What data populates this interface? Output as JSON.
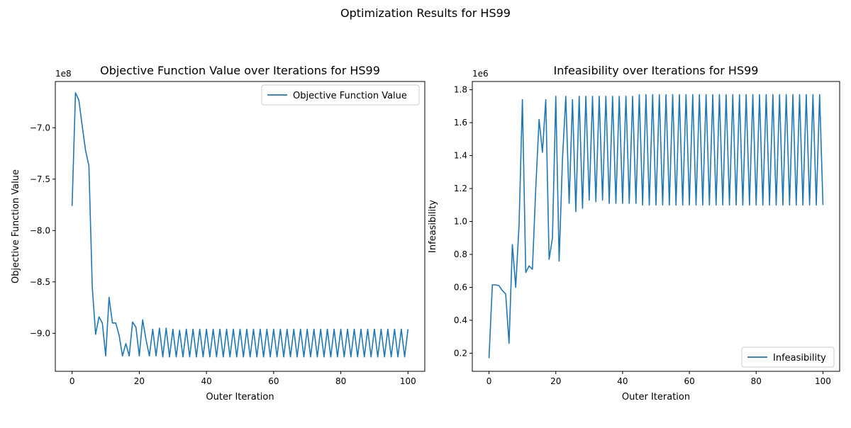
{
  "figure": {
    "suptitle": "Optimization Results for HS99"
  },
  "colors": {
    "series": "#1f77b4",
    "axes": "#000000",
    "legend_border": "#cccccc"
  },
  "chart_data": [
    {
      "type": "line",
      "title": "Objective Function Value over Iterations for HS99",
      "xlabel": "Outer Iteration",
      "ylabel": "Objective Function Value",
      "y_offset_text": "1e8",
      "y_scale_factor": 100000000,
      "xlim": [
        -5,
        105
      ],
      "ylim": [
        -9.37,
        -6.55
      ],
      "x_ticks": [
        0,
        20,
        40,
        60,
        80,
        100
      ],
      "x_tick_labels": [
        "0",
        "20",
        "40",
        "60",
        "80",
        "100"
      ],
      "y_ticks": [
        -9.0,
        -8.5,
        -8.0,
        -7.5,
        -7.0
      ],
      "y_tick_labels": [
        "−9.0",
        "−8.5",
        "−8.0",
        "−7.5",
        "−7.0"
      ],
      "grid": false,
      "legend_position": "upper right",
      "series": [
        {
          "name": "Objective Function Value",
          "x": [
            0,
            1,
            2,
            3,
            4,
            5,
            6,
            7,
            8,
            9,
            10,
            11,
            12,
            13,
            14,
            15,
            16,
            17,
            18,
            19,
            20,
            21,
            22,
            23,
            24,
            25,
            26,
            27,
            28,
            29,
            30,
            31,
            32,
            33,
            34,
            35,
            36,
            37,
            38,
            39,
            40,
            41,
            42,
            43,
            44,
            45,
            46,
            47,
            48,
            49,
            50,
            51,
            52,
            53,
            54,
            55,
            56,
            57,
            58,
            59,
            60,
            61,
            62,
            63,
            64,
            65,
            66,
            67,
            68,
            69,
            70,
            71,
            72,
            73,
            74,
            75,
            76,
            77,
            78,
            79,
            80,
            81,
            82,
            83,
            84,
            85,
            86,
            87,
            88,
            89,
            90,
            91,
            92,
            93,
            94,
            95,
            96,
            97,
            98,
            99,
            100
          ],
          "values": [
            -7.76,
            -6.66,
            -6.73,
            -6.98,
            -7.22,
            -7.37,
            -8.55,
            -9.01,
            -8.84,
            -8.9,
            -9.22,
            -8.65,
            -8.9,
            -8.9,
            -9.02,
            -9.22,
            -9.1,
            -9.22,
            -8.89,
            -8.94,
            -9.22,
            -8.87,
            -9.06,
            -9.22,
            -8.96,
            -9.22,
            -8.95,
            -9.23,
            -8.95,
            -9.23,
            -8.96,
            -9.23,
            -8.97,
            -9.23,
            -8.96,
            -9.23,
            -8.96,
            -9.23,
            -8.96,
            -9.23,
            -8.96,
            -9.23,
            -8.96,
            -9.23,
            -8.96,
            -9.23,
            -8.96,
            -9.23,
            -8.96,
            -9.23,
            -8.96,
            -9.23,
            -8.96,
            -9.23,
            -8.96,
            -9.23,
            -8.96,
            -9.23,
            -8.96,
            -9.23,
            -8.96,
            -9.23,
            -8.96,
            -9.23,
            -8.96,
            -9.23,
            -8.96,
            -9.23,
            -8.96,
            -9.23,
            -8.96,
            -9.23,
            -8.96,
            -9.23,
            -8.96,
            -9.23,
            -8.96,
            -9.23,
            -8.96,
            -9.23,
            -8.96,
            -9.23,
            -8.96,
            -9.23,
            -8.96,
            -9.23,
            -8.96,
            -9.23,
            -8.96,
            -9.23,
            -8.96,
            -9.23,
            -8.96,
            -9.23,
            -8.96,
            -9.23,
            -8.96,
            -9.23,
            -8.96,
            -9.23,
            -8.96
          ]
        }
      ]
    },
    {
      "type": "line",
      "title": "Infeasibility over Iterations for HS99",
      "xlabel": "Outer Iteration",
      "ylabel": "Infeasibility",
      "y_offset_text": "1e6",
      "y_scale_factor": 1000000,
      "xlim": [
        -5,
        105
      ],
      "ylim": [
        0.09,
        1.85
      ],
      "x_ticks": [
        0,
        20,
        40,
        60,
        80,
        100
      ],
      "x_tick_labels": [
        "0",
        "20",
        "40",
        "60",
        "80",
        "100"
      ],
      "y_ticks": [
        0.2,
        0.4,
        0.6,
        0.8,
        1.0,
        1.2,
        1.4,
        1.6,
        1.8
      ],
      "y_tick_labels": [
        "0.2",
        "0.4",
        "0.6",
        "0.8",
        "1.0",
        "1.2",
        "1.4",
        "1.6",
        "1.8"
      ],
      "grid": false,
      "legend_position": "lower right",
      "series": [
        {
          "name": "Infeasibility",
          "x": [
            0,
            1,
            2,
            3,
            4,
            5,
            6,
            7,
            8,
            9,
            10,
            11,
            12,
            13,
            14,
            15,
            16,
            17,
            18,
            19,
            20,
            21,
            22,
            23,
            24,
            25,
            26,
            27,
            28,
            29,
            30,
            31,
            32,
            33,
            34,
            35,
            36,
            37,
            38,
            39,
            40,
            41,
            42,
            43,
            44,
            45,
            46,
            47,
            48,
            49,
            50,
            51,
            52,
            53,
            54,
            55,
            56,
            57,
            58,
            59,
            60,
            61,
            62,
            63,
            64,
            65,
            66,
            67,
            68,
            69,
            70,
            71,
            72,
            73,
            74,
            75,
            76,
            77,
            78,
            79,
            80,
            81,
            82,
            83,
            84,
            85,
            86,
            87,
            88,
            89,
            90,
            91,
            92,
            93,
            94,
            95,
            96,
            97,
            98,
            99,
            100
          ],
          "values": [
            0.17,
            0.615,
            0.615,
            0.61,
            0.58,
            0.56,
            0.26,
            0.86,
            0.6,
            0.98,
            1.74,
            0.69,
            0.73,
            0.71,
            1.2,
            1.62,
            1.42,
            1.74,
            0.77,
            0.9,
            1.76,
            0.76,
            1.38,
            1.76,
            1.11,
            1.74,
            1.06,
            1.76,
            1.08,
            1.76,
            1.13,
            1.76,
            1.12,
            1.76,
            1.13,
            1.76,
            1.11,
            1.76,
            1.11,
            1.76,
            1.11,
            1.76,
            1.11,
            1.76,
            1.11,
            1.77,
            1.1,
            1.77,
            1.1,
            1.77,
            1.1,
            1.77,
            1.1,
            1.77,
            1.1,
            1.77,
            1.1,
            1.77,
            1.1,
            1.77,
            1.1,
            1.77,
            1.1,
            1.77,
            1.1,
            1.77,
            1.1,
            1.77,
            1.1,
            1.77,
            1.1,
            1.77,
            1.1,
            1.77,
            1.1,
            1.77,
            1.1,
            1.77,
            1.1,
            1.77,
            1.1,
            1.77,
            1.1,
            1.77,
            1.1,
            1.77,
            1.1,
            1.77,
            1.1,
            1.77,
            1.1,
            1.77,
            1.1,
            1.77,
            1.1,
            1.77,
            1.1,
            1.77,
            1.1,
            1.77,
            1.1
          ]
        }
      ]
    }
  ]
}
